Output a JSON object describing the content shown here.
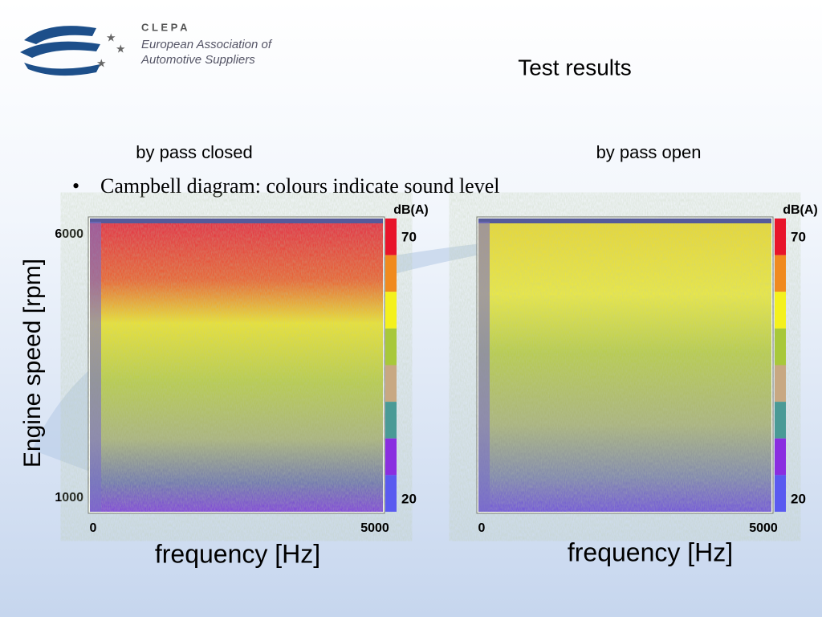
{
  "header": {
    "logo_name": "C L E P A",
    "logo_line1": "European Association of",
    "logo_line2": "Automotive Suppliers",
    "title": "Test results"
  },
  "bullet": "Campbell diagram: colours indicate sound level",
  "y_axis": {
    "label": "Engine speed [rpm]",
    "top": 6000,
    "bottom": 1000
  },
  "panels": [
    {
      "caption": "by pass closed",
      "colorbar_label": "dB(A)",
      "colorbar_max": 70,
      "colorbar_min": 20,
      "x_left": 0,
      "x_right": 5000,
      "x_label": "frequency [Hz]"
    },
    {
      "caption": "by pass open",
      "colorbar_label": "dB(A)",
      "colorbar_max": 70,
      "colorbar_min": 20,
      "x_left": 0,
      "x_right": 5000,
      "x_label": "frequency [Hz]"
    }
  ]
}
